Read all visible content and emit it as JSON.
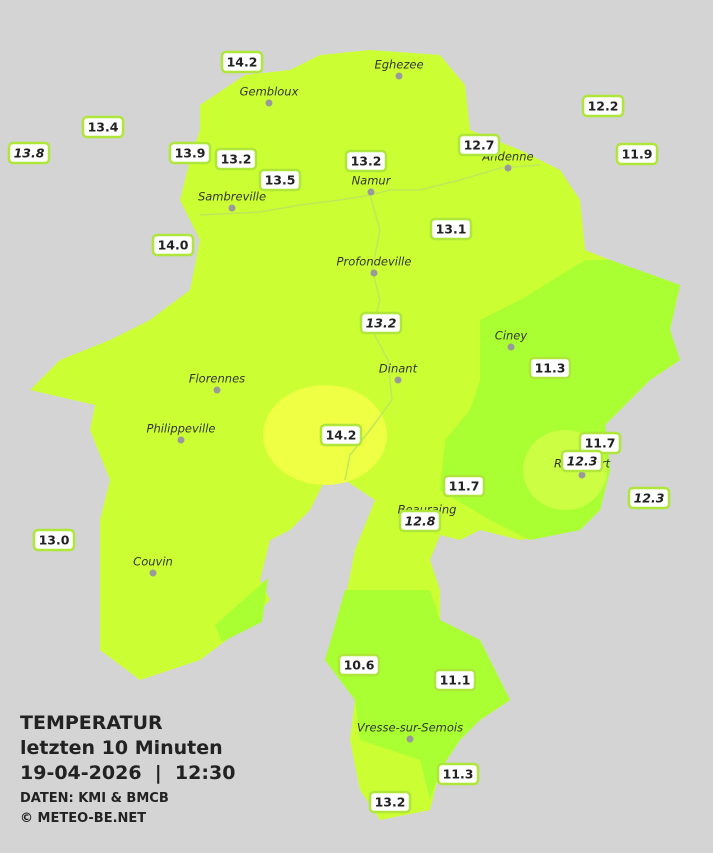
{
  "legend": {
    "title": "TEMPERATUR",
    "period": "letzten 10 Minuten",
    "datetime": "19-04-2026  |  12:30",
    "source": "DATEN: KMI & BMCB",
    "copyright": "© METEO-BE.NET"
  },
  "cities": [
    "Eghezee",
    "Gembloux",
    "Andenne",
    "Namur",
    "Sambreville",
    "Profondeville",
    "Ciney",
    "Dinant",
    "Florennes",
    "Philippeville",
    "Rochefort",
    "Beauraing",
    "Couvin",
    "Vresse-sur-Semois"
  ],
  "stations": [
    {
      "label": "14.2"
    },
    {
      "label": "13.4"
    },
    {
      "label": "13.8",
      "italic": true
    },
    {
      "label": "13.9"
    },
    {
      "label": "13.2"
    },
    {
      "label": "13.5"
    },
    {
      "label": "13.2"
    },
    {
      "label": "12.7"
    },
    {
      "label": "12.2"
    },
    {
      "label": "11.9"
    },
    {
      "label": "14.0"
    },
    {
      "label": "13.1"
    },
    {
      "label": "13.2",
      "italic": true
    },
    {
      "label": "11.3"
    },
    {
      "label": "14.2"
    },
    {
      "label": "11.7"
    },
    {
      "label": "12.3",
      "italic": true
    },
    {
      "label": "12.3",
      "italic": true
    },
    {
      "label": "11.7"
    },
    {
      "label": "12.8",
      "italic": true
    },
    {
      "label": "13.0"
    },
    {
      "label": "10.6"
    },
    {
      "label": "11.1"
    },
    {
      "label": "11.3"
    },
    {
      "label": "13.2"
    }
  ]
}
